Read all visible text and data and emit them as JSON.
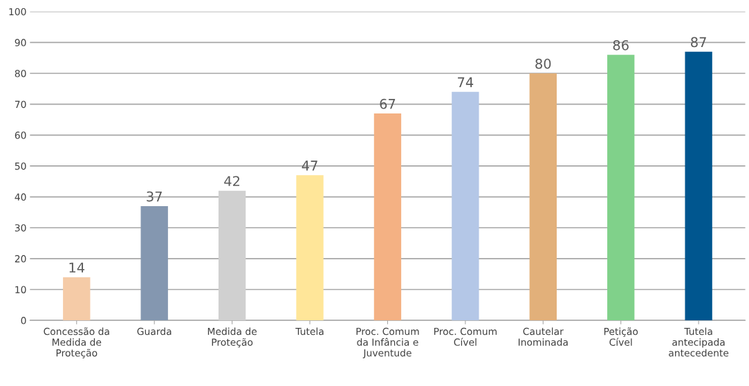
{
  "chart_data": {
    "type": "bar",
    "categories": [
      "Concessão da\nMedida de\nProteção",
      "Guarda",
      "Medida de\nProteção",
      "Tutela",
      "Proc. Comum\nda Infância e\nJuventude",
      "Proc. Comum\nCível",
      "Cautelar\nInominada",
      "Petição\nCível",
      "Tutela\nantecipada\nantecedente"
    ],
    "values": [
      14,
      37,
      42,
      47,
      67,
      74,
      80,
      86,
      87
    ],
    "colors": [
      "#f5cba7",
      "#8497b0",
      "#d0d0d0",
      "#ffe699",
      "#f4b183",
      "#b4c7e7",
      "#e2b07a",
      "#80d18a",
      "#00568f"
    ],
    "ylim": [
      0,
      100
    ],
    "yticks": [
      0,
      10,
      20,
      30,
      40,
      50,
      60,
      70,
      80,
      90,
      100
    ],
    "grid": "y",
    "data_labels": true
  }
}
